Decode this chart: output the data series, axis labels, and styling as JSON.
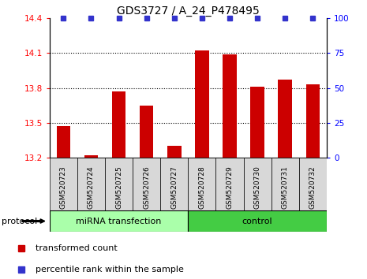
{
  "title": "GDS3727 / A_24_P478495",
  "samples": [
    "GSM520723",
    "GSM520724",
    "GSM520725",
    "GSM520726",
    "GSM520727",
    "GSM520728",
    "GSM520729",
    "GSM520730",
    "GSM520731",
    "GSM520732"
  ],
  "bar_values": [
    13.47,
    13.22,
    13.77,
    13.65,
    13.3,
    14.12,
    14.09,
    13.81,
    13.87,
    13.83
  ],
  "percentile_values": [
    100,
    100,
    100,
    100,
    100,
    100,
    100,
    100,
    100,
    100
  ],
  "bar_color": "#cc0000",
  "dot_color": "#3333cc",
  "ylim_left": [
    13.2,
    14.4
  ],
  "ylim_right": [
    0,
    100
  ],
  "yticks_left": [
    13.2,
    13.5,
    13.8,
    14.1,
    14.4
  ],
  "yticks_right": [
    0,
    25,
    50,
    75,
    100
  ],
  "grid_lines": [
    13.5,
    13.8,
    14.1
  ],
  "groups": [
    {
      "label": "miRNA transfection",
      "start": 0,
      "end": 5,
      "color": "#aaffaa"
    },
    {
      "label": "control",
      "start": 5,
      "end": 10,
      "color": "#44cc44"
    }
  ],
  "group_row_label": "protocol",
  "legend_bar_label": "transformed count",
  "legend_dot_label": "percentile rank within the sample",
  "title_fontsize": 10,
  "tick_fontsize": 7.5,
  "sample_fontsize": 6.5,
  "label_fontsize": 8,
  "legend_fontsize": 8
}
